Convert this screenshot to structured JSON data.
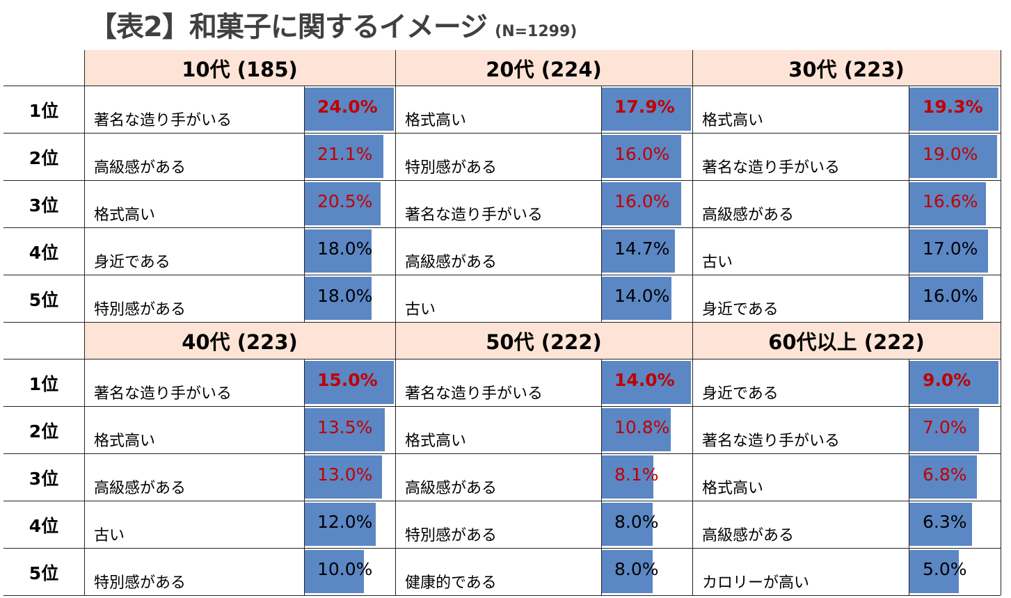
{
  "title": "【表2】和菓子に関するイメージ",
  "sample_size": "(N=1299)",
  "ranks": [
    "1位",
    "2位",
    "3位",
    "4位",
    "5位"
  ],
  "colors": {
    "bar": "#5b87c4",
    "header_bg": "#fde4d6",
    "highlight": "#c00000"
  },
  "chart_data": {
    "type": "table",
    "title": "【表2】和菓子に関するイメージ",
    "unit": "%",
    "groups": [
      {
        "header": "10代 (185)",
        "items": [
          {
            "label": "著名な造り手がいる",
            "value": 24.0,
            "display": "24.0%"
          },
          {
            "label": "高級感がある",
            "value": 21.1,
            "display": "21.1%"
          },
          {
            "label": "格式高い",
            "value": 20.5,
            "display": "20.5%"
          },
          {
            "label": "身近である",
            "value": 18.0,
            "display": "18.0%"
          },
          {
            "label": "特別感がある",
            "value": 18.0,
            "display": "18.0%"
          }
        ]
      },
      {
        "header": "20代 (224)",
        "items": [
          {
            "label": "格式高い",
            "value": 17.9,
            "display": "17.9%"
          },
          {
            "label": "特別感がある",
            "value": 16.0,
            "display": "16.0%"
          },
          {
            "label": "著名な造り手がいる",
            "value": 16.0,
            "display": "16.0%"
          },
          {
            "label": "高級感がある",
            "value": 14.7,
            "display": "14.7%"
          },
          {
            "label": "古い",
            "value": 14.0,
            "display": "14.0%"
          }
        ]
      },
      {
        "header": "30代 (223)",
        "items": [
          {
            "label": "格式高い",
            "value": 19.3,
            "display": "19.3%"
          },
          {
            "label": "著名な造り手がいる",
            "value": 19.0,
            "display": "19.0%"
          },
          {
            "label": "高級感がある",
            "value": 16.6,
            "display": "16.6%"
          },
          {
            "label": "古い",
            "value": 17.0,
            "display": "17.0%"
          },
          {
            "label": "身近である",
            "value": 16.0,
            "display": "16.0%"
          }
        ]
      },
      {
        "header": "40代 (223)",
        "items": [
          {
            "label": "著名な造り手がいる",
            "value": 15.0,
            "display": "15.0%"
          },
          {
            "label": "格式高い",
            "value": 13.5,
            "display": "13.5%"
          },
          {
            "label": "高級感がある",
            "value": 13.0,
            "display": "13.0%"
          },
          {
            "label": "古い",
            "value": 12.0,
            "display": "12.0%"
          },
          {
            "label": "特別感がある",
            "value": 10.0,
            "display": "10.0%"
          }
        ]
      },
      {
        "header": "50代 (222)",
        "items": [
          {
            "label": "著名な造り手がいる",
            "value": 14.0,
            "display": "14.0%"
          },
          {
            "label": "格式高い",
            "value": 10.8,
            "display": "10.8%"
          },
          {
            "label": "高級感がある",
            "value": 8.1,
            "display": "8.1%"
          },
          {
            "label": "特別感がある",
            "value": 8.0,
            "display": "8.0%"
          },
          {
            "label": "健康的である",
            "value": 8.0,
            "display": "8.0%"
          }
        ]
      },
      {
        "header": "60代以上 (222)",
        "items": [
          {
            "label": "身近である",
            "value": 9.0,
            "display": "9.0%"
          },
          {
            "label": "著名な造り手がいる",
            "value": 7.0,
            "display": "7.0%"
          },
          {
            "label": "格式高い",
            "value": 6.8,
            "display": "6.8%"
          },
          {
            "label": "高級感がある",
            "value": 6.3,
            "display": "6.3%"
          },
          {
            "label": "カロリーが高い",
            "value": 5.0,
            "display": "5.0%"
          }
        ]
      }
    ]
  }
}
